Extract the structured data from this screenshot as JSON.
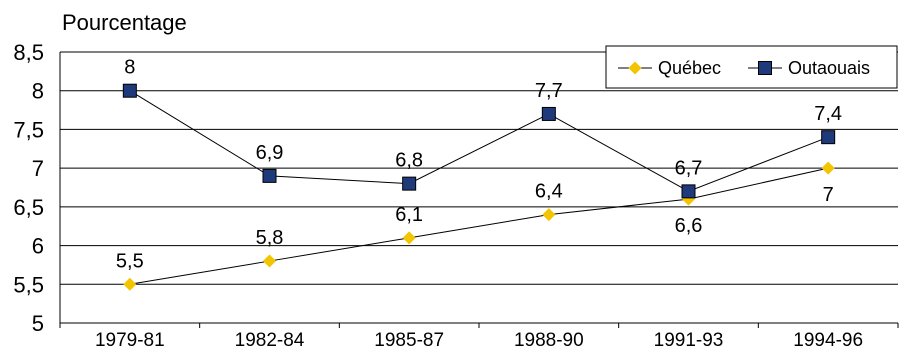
{
  "chart_data": {
    "type": "line",
    "ylabel": "Pourcentage",
    "categories": [
      "1979-81",
      "1982-84",
      "1985-87",
      "1988-90",
      "1991-93",
      "1994-96"
    ],
    "ylim": [
      5,
      8.5
    ],
    "yticks": [
      "5",
      "5,5",
      "6",
      "6,5",
      "7",
      "7,5",
      "8",
      "8,5"
    ],
    "ytick_values": [
      5,
      5.5,
      6,
      6.5,
      7,
      7.5,
      8,
      8.5
    ],
    "grid": true,
    "legend_position": "top-right",
    "series": [
      {
        "name": "Québec",
        "color": "#F2C500",
        "marker": "diamond",
        "values": [
          5.5,
          5.8,
          6.1,
          6.4,
          6.6,
          7.0
        ],
        "labels": [
          "5,5",
          "5,8",
          "6,1",
          "6,4",
          "6,6",
          "7"
        ],
        "label_side": [
          "above",
          "above",
          "above",
          "above",
          "below",
          "below"
        ]
      },
      {
        "name": "Outaouais",
        "color": "#1F3A7A",
        "marker": "square",
        "values": [
          8.0,
          6.9,
          6.8,
          7.7,
          6.7,
          7.4
        ],
        "labels": [
          "8",
          "6,9",
          "6,8",
          "7,7",
          "6,7",
          "7,4"
        ],
        "label_side": [
          "above",
          "above",
          "above",
          "above",
          "above",
          "above"
        ]
      }
    ]
  }
}
